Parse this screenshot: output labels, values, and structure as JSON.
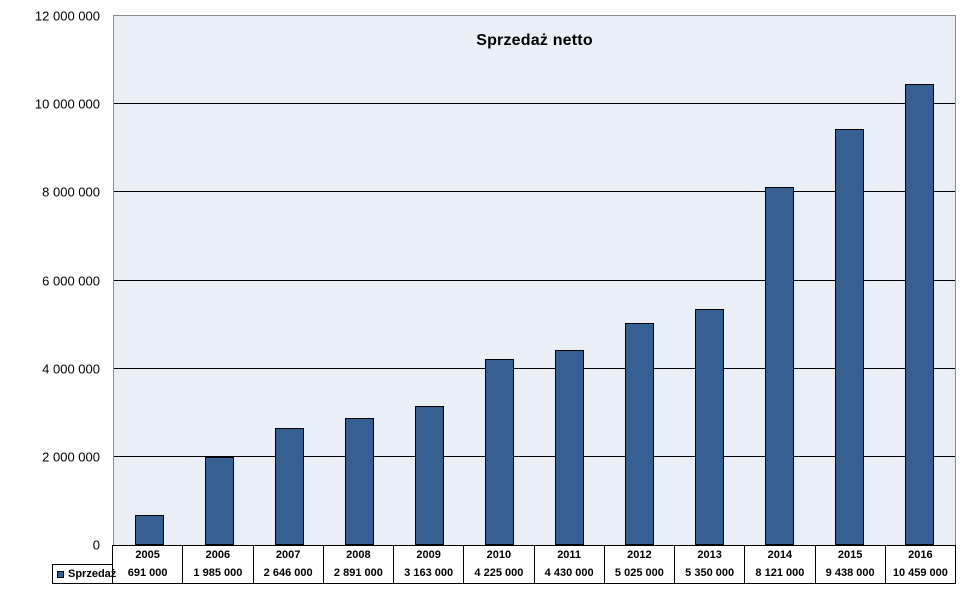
{
  "chart_data": {
    "type": "bar",
    "title": "Sprzedaż netto",
    "categories": [
      "2005",
      "2006",
      "2007",
      "2008",
      "2009",
      "2010",
      "2011",
      "2012",
      "2013",
      "2014",
      "2015",
      "2016"
    ],
    "series": [
      {
        "name": "Sprzedaż",
        "values": [
          691000,
          1985000,
          2646000,
          2891000,
          3163000,
          4225000,
          4430000,
          5025000,
          5350000,
          8121000,
          9438000,
          10459000
        ],
        "values_formatted": [
          "691 000",
          "1 985 000",
          "2 646 000",
          "2 891 000",
          "3 163 000",
          "4 225 000",
          "4 430 000",
          "5 025 000",
          "5 350 000",
          "8 121 000",
          "9 438 000",
          "10 459 000"
        ]
      }
    ],
    "xlabel": "",
    "ylabel": "",
    "ylim": [
      0,
      12000000
    ],
    "y_ticks": [
      {
        "value": 0,
        "label": "0"
      },
      {
        "value": 2000000,
        "label": "2 000 000"
      },
      {
        "value": 4000000,
        "label": "4 000 000"
      },
      {
        "value": 6000000,
        "label": "6 000 000"
      },
      {
        "value": 8000000,
        "label": "8 000 000"
      },
      {
        "value": 10000000,
        "label": "10 000 000"
      },
      {
        "value": 12000000,
        "label": "12 000 000"
      }
    ],
    "grid": "horizontal",
    "legend_position": "data-table-left",
    "colors": {
      "bar_fill": "#376092",
      "bar_border": "#000000",
      "plot_background": "#E9EEF7",
      "plot_border": "#8C8C8C",
      "grid_color": "#000000"
    }
  }
}
